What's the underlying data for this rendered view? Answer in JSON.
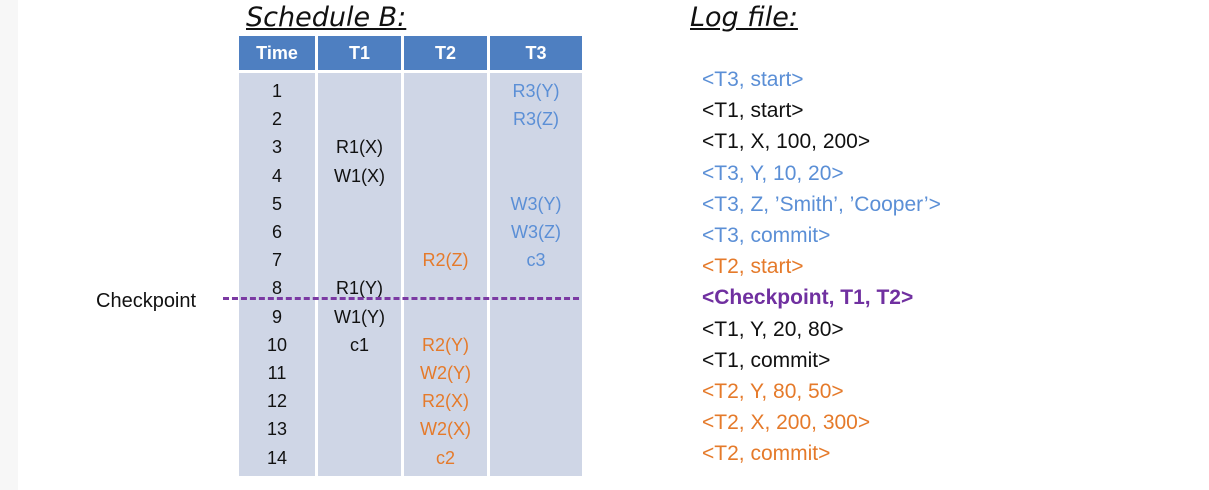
{
  "schedule": {
    "title": "Schedule B:",
    "headers": [
      "Time",
      "T1",
      "T2",
      "T3"
    ],
    "rows": [
      {
        "time": "1",
        "t1": "",
        "t2": "",
        "t3": "R3(Y)"
      },
      {
        "time": "2",
        "t1": "",
        "t2": "",
        "t3": "R3(Z)"
      },
      {
        "time": "3",
        "t1": "R1(X)",
        "t2": "",
        "t3": ""
      },
      {
        "time": "4",
        "t1": "W1(X)",
        "t2": "",
        "t3": ""
      },
      {
        "time": "5",
        "t1": "",
        "t2": "",
        "t3": "W3(Y)"
      },
      {
        "time": "6",
        "t1": "",
        "t2": "",
        "t3": "W3(Z)"
      },
      {
        "time": "7",
        "t1": "",
        "t2": "R2(Z)",
        "t3": "c3"
      },
      {
        "time": "8",
        "t1": "R1(Y)",
        "t2": "",
        "t3": ""
      },
      {
        "time": "9",
        "t1": "W1(Y)",
        "t2": "",
        "t3": ""
      },
      {
        "time": "10",
        "t1": "c1",
        "t2": "R2(Y)",
        "t3": ""
      },
      {
        "time": "11",
        "t1": "",
        "t2": "W2(Y)",
        "t3": ""
      },
      {
        "time": "12",
        "t1": "",
        "t2": "R2(X)",
        "t3": ""
      },
      {
        "time": "13",
        "t1": "",
        "t2": "W2(X)",
        "t3": ""
      },
      {
        "time": "14",
        "t1": "",
        "t2": "c2",
        "t3": ""
      }
    ],
    "checkpoint_label": "Checkpoint"
  },
  "log": {
    "title": "Log file:",
    "entries": [
      {
        "text": "<T3, start>",
        "color": "#5b8fd6"
      },
      {
        "text": "<T1, start>",
        "color": "#111111"
      },
      {
        "text": "<T1, X, 100, 200>",
        "color": "#111111"
      },
      {
        "text": "<T3, Y, 10, 20>",
        "color": "#5b8fd6"
      },
      {
        "text": "<T3, Z, ’Smith’, ’Cooper’>",
        "color": "#5b8fd6"
      },
      {
        "text": "<T3, commit>",
        "color": "#5b8fd6"
      },
      {
        "text": "<T2, start>",
        "color": "#e57a2a"
      },
      {
        "text": "<Checkpoint, T1, T2>",
        "color": "#7030a0"
      },
      {
        "text": "<T1, Y, 20, 80>",
        "color": "#111111"
      },
      {
        "text": "<T1, commit>",
        "color": "#111111"
      },
      {
        "text": "<T2, Y, 80, 50>",
        "color": "#e57a2a"
      },
      {
        "text": "<T2, X, 200, 300>",
        "color": "#e57a2a"
      },
      {
        "text": "<T2, commit>",
        "color": "#e57a2a"
      }
    ]
  },
  "colors": {
    "header_bg": "#4e7fc1",
    "column_bg": "#cfd6e6",
    "t1": "#111111",
    "t2": "#e57a2a",
    "t3": "#5b8fd6",
    "checkpoint": "#7b3aa3"
  }
}
